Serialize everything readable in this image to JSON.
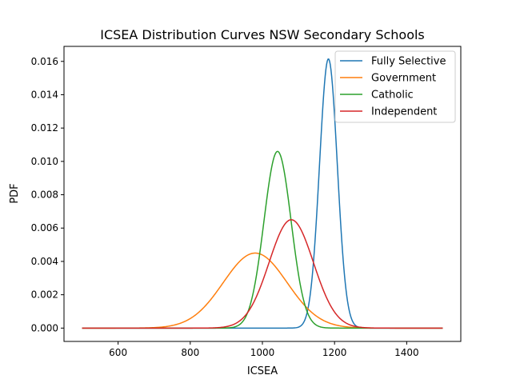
{
  "chart_data": {
    "type": "line",
    "title": "ICSEA Distribution Curves NSW Secondary Schools",
    "xlabel": "ICSEA",
    "ylabel": "PDF",
    "xlim": [
      450,
      1550
    ],
    "ylim": [
      -0.0008,
      0.0169
    ],
    "x_range": [
      500,
      1500
    ],
    "xticks": [
      600,
      800,
      1000,
      1200,
      1400
    ],
    "xtick_labels": [
      "600",
      "800",
      "1000",
      "1200",
      "1400"
    ],
    "yticks": [
      0.0,
      0.002,
      0.004,
      0.006,
      0.008,
      0.01,
      0.012,
      0.014,
      0.016
    ],
    "ytick_labels": [
      "0.000",
      "0.002",
      "0.004",
      "0.006",
      "0.008",
      "0.010",
      "0.012",
      "0.014",
      "0.016"
    ],
    "grid": false,
    "legend_position": "top-right",
    "series": [
      {
        "name": "Fully Selective",
        "color": "#1f77b4",
        "distribution": "normal",
        "mean": 1183,
        "sd": 24.7,
        "peak": 0.01615
      },
      {
        "name": "Government",
        "color": "#ff7f0e",
        "distribution": "normal",
        "mean": 980,
        "sd": 88.6,
        "peak": 0.0045
      },
      {
        "name": "Catholic",
        "color": "#2ca02c",
        "distribution": "normal",
        "mean": 1042,
        "sd": 37.6,
        "peak": 0.0106
      },
      {
        "name": "Independent",
        "color": "#d62728",
        "distribution": "normal",
        "mean": 1080,
        "sd": 61.4,
        "peak": 0.0065
      }
    ]
  }
}
